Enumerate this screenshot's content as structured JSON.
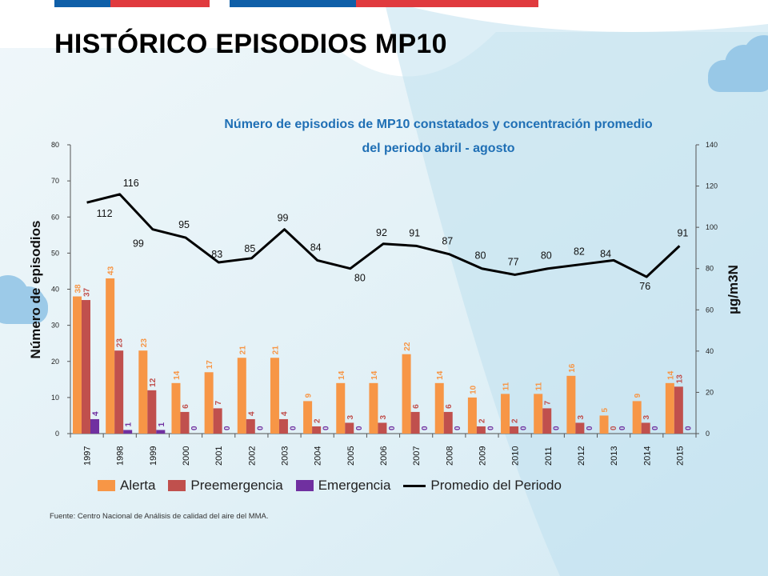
{
  "page": {
    "title": "HISTÓRICO EPISODIOS MP10",
    "source": "Fuente: Centro Nacional de Análisis de calidad del aire del MMA."
  },
  "colors": {
    "alerta": "#F79646",
    "preemergencia": "#C0504D",
    "emergencia": "#7030A0",
    "promedio": "#000000",
    "subtitle": "#1F6FB5",
    "brand_blue": "#0F5FA8",
    "brand_red": "#E03A3E"
  },
  "chart_data": {
    "type": "bar",
    "title": "Número de episodios  de  MP10 constatados  y concentración promedio",
    "title_line2": "del  periodo  abril - agosto",
    "ylabel": "Número de episodios",
    "y2label": "µg/m3N",
    "ylim": [
      0,
      80
    ],
    "y2lim": [
      0,
      140
    ],
    "yticks": [
      "0",
      "10",
      "20",
      "30",
      "40",
      "50",
      "60",
      "70",
      "80"
    ],
    "y2ticks": [
      "0",
      "20",
      "40",
      "60",
      "80",
      "100",
      "120",
      "140"
    ],
    "categories": [
      "1997",
      "1998",
      "1999",
      "2000",
      "2001",
      "2002",
      "2003",
      "2004",
      "2005",
      "2006",
      "2007",
      "2008",
      "2009",
      "2010",
      "2011",
      "2012",
      "2013",
      "2014",
      "2015"
    ],
    "series": [
      {
        "name": "Alerta",
        "kind": "bar",
        "values": [
          38,
          43,
          23,
          14,
          17,
          21,
          21,
          9,
          14,
          14,
          22,
          14,
          10,
          11,
          11,
          16,
          5,
          9,
          14
        ]
      },
      {
        "name": "Preemergencia",
        "kind": "bar",
        "values": [
          37,
          23,
          12,
          6,
          7,
          4,
          4,
          2,
          3,
          3,
          6,
          6,
          2,
          2,
          7,
          3,
          0,
          3,
          13
        ]
      },
      {
        "name": "Emergencia",
        "kind": "bar",
        "values": [
          4,
          1,
          1,
          0,
          0,
          0,
          0,
          0,
          0,
          0,
          0,
          0,
          0,
          0,
          0,
          0,
          0,
          0,
          0
        ]
      },
      {
        "name": "Promedio del Periodo",
        "kind": "line",
        "axis": "right",
        "values": [
          112,
          116,
          99,
          95,
          83,
          85,
          99,
          84,
          80,
          92,
          91,
          87,
          80,
          77,
          80,
          82,
          84,
          76,
          91
        ]
      }
    ],
    "grid": false,
    "legend": "bottom"
  }
}
